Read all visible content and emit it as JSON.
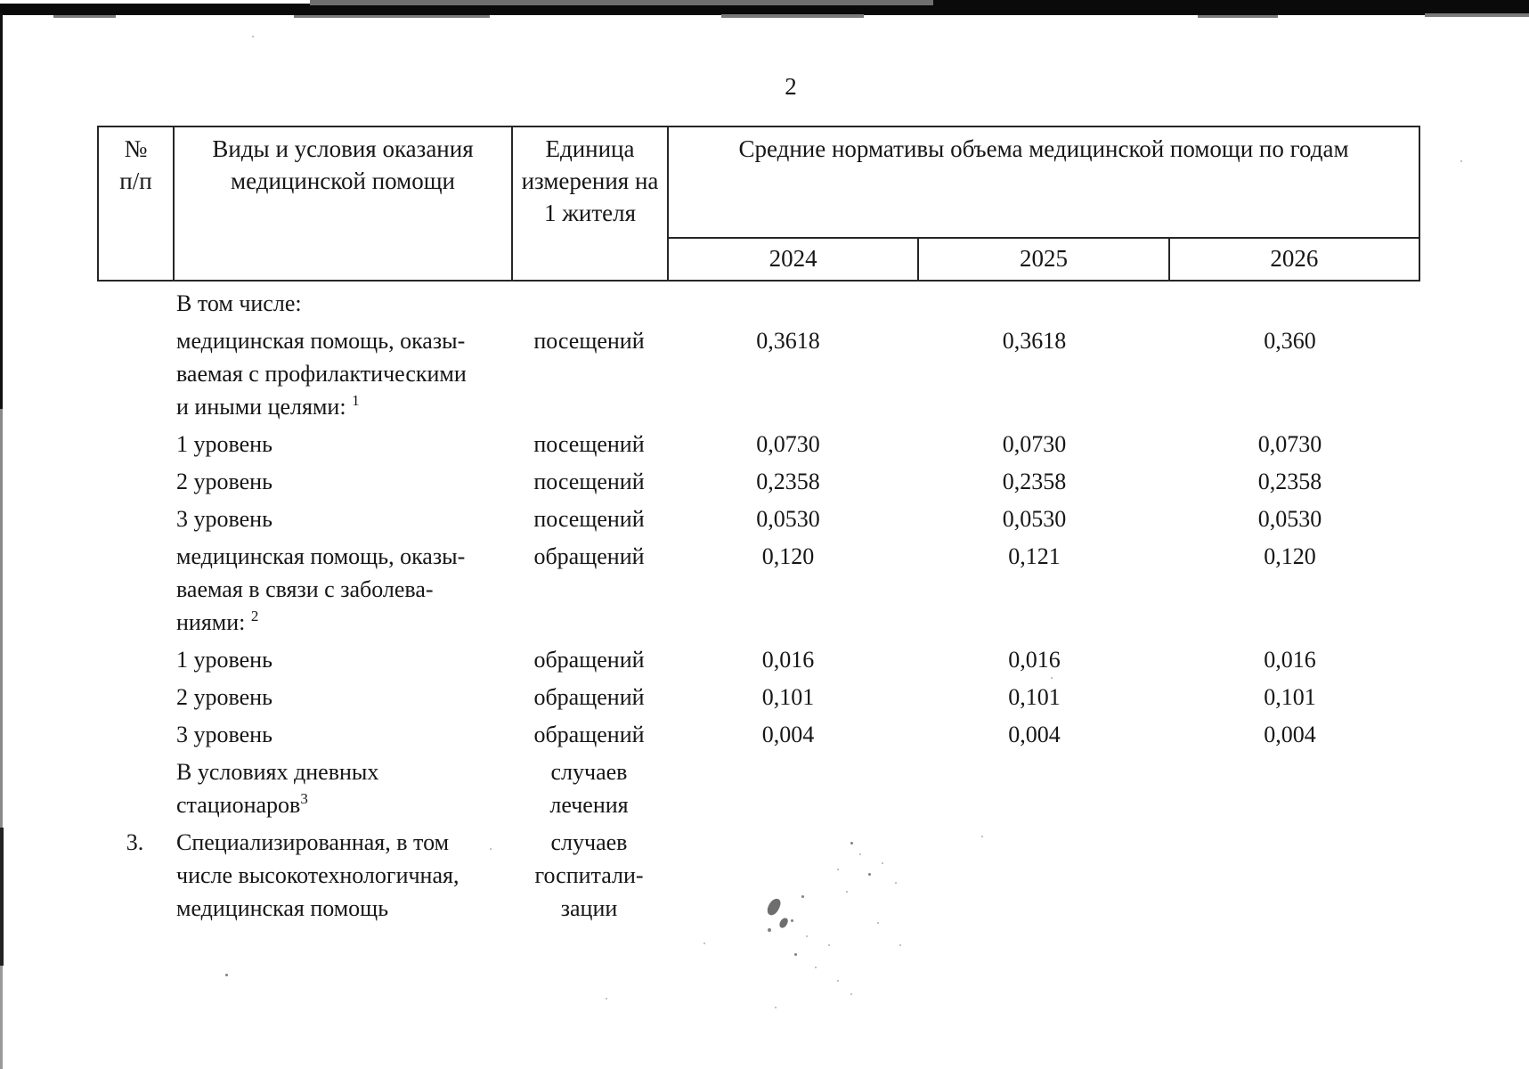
{
  "page_number": "2",
  "table": {
    "header": {
      "col_num": "№\nп/п",
      "col_kind": "Виды и условия оказания\nмедицинской помощи",
      "col_unit": "Единица\nизмерения на\n1 жителя",
      "col_norms": "Средние нормативы объема медицинской помощи по годам",
      "years": [
        "2024",
        "2025",
        "2026"
      ]
    },
    "rows": [
      {
        "num": "",
        "kind": "В том числе:",
        "sup": "",
        "unit": "",
        "values": [
          "",
          "",
          ""
        ]
      },
      {
        "num": "",
        "kind": "медицинская помощь, оказы-\nваемая с профилактическими\nи иными целями: ",
        "sup": "1",
        "unit": "посещений",
        "values": [
          "0,3618",
          "0,3618",
          "0,360"
        ]
      },
      {
        "num": "",
        "kind": "1 уровень",
        "sup": "",
        "unit": "посещений",
        "values": [
          "0,0730",
          "0,0730",
          "0,0730"
        ]
      },
      {
        "num": "",
        "kind": "2 уровень",
        "sup": "",
        "unit": "посещений",
        "values": [
          "0,2358",
          "0,2358",
          "0,2358"
        ]
      },
      {
        "num": "",
        "kind": "3 уровень",
        "sup": "",
        "unit": "посещений",
        "values": [
          "0,0530",
          "0,0530",
          "0,0530"
        ]
      },
      {
        "num": "",
        "kind": "медицинская помощь, оказы-\nваемая в связи с заболева-\nниями: ",
        "sup": "2",
        "unit": "обращений",
        "values": [
          "0,120",
          "0,121",
          "0,120"
        ]
      },
      {
        "num": "",
        "kind": "1 уровень",
        "sup": "",
        "unit": "обращений",
        "values": [
          "0,016",
          "0,016",
          "0,016"
        ]
      },
      {
        "num": "",
        "kind": "2 уровень",
        "sup": "",
        "unit": "обращений",
        "values": [
          "0,101",
          "0,101",
          "0,101"
        ]
      },
      {
        "num": "",
        "kind": "3 уровень",
        "sup": "",
        "unit": "обращений",
        "values": [
          "0,004",
          "0,004",
          "0,004"
        ]
      },
      {
        "num": "",
        "kind": "В условиях дневных\nстационаров",
        "sup": "3",
        "unit": "случаев\nлечения",
        "values": [
          "",
          "",
          ""
        ]
      },
      {
        "num": "3.",
        "kind": "Специализированная, в том\nчисле высокотехнологичная,\nмедицинская помощь",
        "sup": "",
        "unit": "случаев\nгоспитали-\nзации",
        "values": [
          "",
          "",
          ""
        ]
      }
    ]
  }
}
